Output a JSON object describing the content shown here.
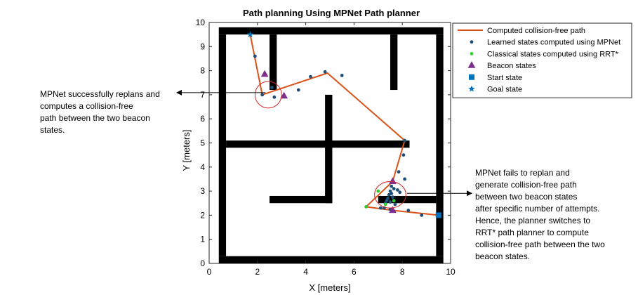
{
  "chart_data": {
    "type": "scatter",
    "title": "Path planning Using MPNet Path planner",
    "xlabel": "X [meters]",
    "ylabel": "Y [meters]",
    "xlim": [
      0,
      10
    ],
    "ylim": [
      0,
      10
    ],
    "xticks": [
      "0",
      "2",
      "4",
      "6",
      "8",
      "10"
    ],
    "yticks": [
      "0",
      "1",
      "2",
      "3",
      "4",
      "5",
      "6",
      "7",
      "8",
      "9",
      "10"
    ],
    "grid": false,
    "legend_position": "top-right",
    "colors": {
      "path": "#d95319",
      "learned": "#1f4e79",
      "classical": "#33cc33",
      "beacon": "#7e2f8e",
      "start": "#0072bd",
      "goal": "#0072bd",
      "obstacle": "#000000"
    },
    "obstacles": [
      [
        0.4,
        9.5,
        9.3,
        0.3
      ],
      [
        0.4,
        0.0,
        9.3,
        0.3
      ],
      [
        0.4,
        0.3,
        0.3,
        9.2
      ],
      [
        9.4,
        0.3,
        0.3,
        9.2
      ],
      [
        2.5,
        7.2,
        0.3,
        2.3
      ],
      [
        7.5,
        7.2,
        0.3,
        2.3
      ],
      [
        0.7,
        4.8,
        7.6,
        0.3
      ],
      [
        4.8,
        2.5,
        0.3,
        4.5
      ],
      [
        2.5,
        2.5,
        2.6,
        0.3
      ],
      [
        7.0,
        2.5,
        2.4,
        0.3
      ]
    ],
    "series": [
      {
        "name": "Computed collision-free path",
        "type": "line",
        "points": [
          [
            9.5,
            2.0
          ],
          [
            7.6,
            2.2
          ],
          [
            6.5,
            2.35
          ],
          [
            7.6,
            3.4
          ],
          [
            8.1,
            5.1
          ],
          [
            4.9,
            7.9
          ],
          [
            2.2,
            7.0
          ],
          [
            1.7,
            9.5
          ]
        ]
      },
      {
        "name": "Learned states computed using MPNet",
        "type": "scatter",
        "points": [
          [
            1.9,
            8.6
          ],
          [
            2.2,
            7.0
          ],
          [
            2.6,
            7.3
          ],
          [
            2.7,
            6.9
          ],
          [
            3.7,
            7.2
          ],
          [
            4.2,
            7.75
          ],
          [
            4.8,
            7.95
          ],
          [
            5.5,
            7.8
          ],
          [
            8.1,
            5.1
          ],
          [
            8.05,
            4.5
          ],
          [
            7.85,
            3.8
          ],
          [
            8.1,
            3.5
          ],
          [
            7.6,
            3.4
          ],
          [
            7.55,
            3.2
          ],
          [
            7.65,
            3.1
          ],
          [
            7.8,
            3.05
          ],
          [
            7.9,
            2.95
          ],
          [
            7.5,
            3.0
          ],
          [
            7.45,
            2.85
          ],
          [
            7.55,
            2.9
          ],
          [
            7.4,
            2.7
          ],
          [
            7.35,
            2.6
          ],
          [
            7.5,
            2.55
          ],
          [
            7.6,
            2.75
          ],
          [
            7.7,
            2.45
          ],
          [
            7.3,
            2.5
          ],
          [
            8.25,
            2.2
          ],
          [
            8.8,
            2.0
          ],
          [
            7.1,
            2.3
          ],
          [
            7.25,
            2.3
          ],
          [
            7.5,
            2.25
          ]
        ]
      },
      {
        "name": "Classical states computed using RRT*",
        "type": "scatter",
        "points": [
          [
            6.5,
            2.35
          ],
          [
            7.0,
            3.0
          ],
          [
            7.3,
            2.45
          ],
          [
            7.65,
            2.6
          ]
        ]
      },
      {
        "name": "Beacon states",
        "type": "scatter",
        "points": [
          [
            2.3,
            7.85
          ],
          [
            3.1,
            6.95
          ],
          [
            7.6,
            3.4
          ],
          [
            7.6,
            2.2
          ]
        ]
      },
      {
        "name": "Start state",
        "type": "scatter",
        "points": [
          [
            9.5,
            2.0
          ]
        ]
      },
      {
        "name": "Goal state",
        "type": "scatter",
        "points": [
          [
            1.7,
            9.5
          ]
        ]
      }
    ],
    "highlights": [
      {
        "center": [
          2.45,
          7.0
        ],
        "rx": 0.55,
        "ry": 0.55
      },
      {
        "center": [
          7.5,
          2.85
        ],
        "rx": 0.65,
        "ry": 0.55
      }
    ]
  },
  "annotations": {
    "left": [
      "MPNet successfully replans and",
      "computes a collision-free",
      "path between the two beacon",
      "states."
    ],
    "right": [
      "MPNet fails to replan and",
      "generate collision-free path",
      "between two beacon states",
      "after specific number of attempts.",
      "Hence, the planner switches to",
      "RRT* path planner to compute",
      "collision-free path between the two",
      "beacon states."
    ]
  }
}
